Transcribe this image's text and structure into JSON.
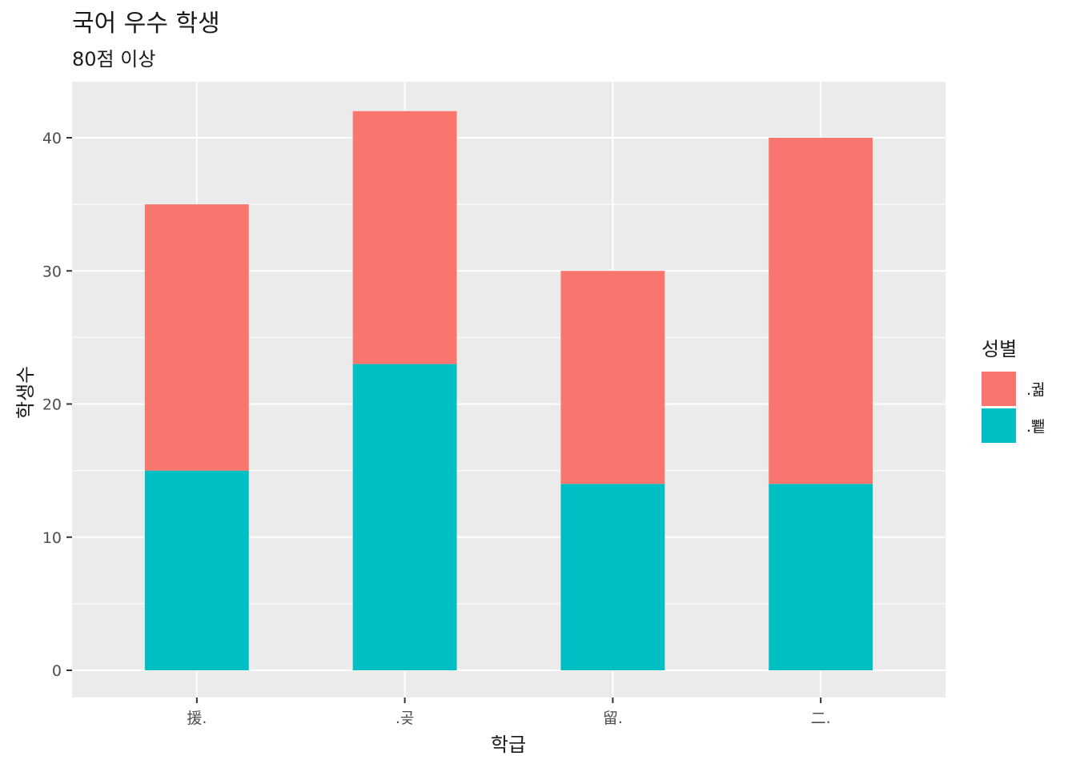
{
  "chart_data": {
    "type": "bar",
    "stacked": true,
    "title": "국어 우수 학생",
    "subtitle": "80점 이상",
    "xlabel": "학급",
    "ylabel": "학생수",
    "categories": [
      "援.",
      ".곶",
      "留.",
      "二."
    ],
    "series": [
      {
        "name": ".궒",
        "color": "#F8766D",
        "values": [
          20,
          19,
          16,
          26
        ]
      },
      {
        "name": ".뾑",
        "color": "#00BFC4",
        "values": [
          15,
          23,
          14,
          14
        ]
      }
    ],
    "ylim": [
      0,
      43.6
    ],
    "yticks": [
      0,
      10,
      20,
      30,
      40
    ],
    "grid": true,
    "legend_title": "성별",
    "legend_position": "right",
    "colors": {
      "panel_background": "#EBEBEB",
      "grid_line": "#FFFFFF",
      "tick_label": "#4D4D4D",
      "text": "#1A1A1A"
    }
  }
}
